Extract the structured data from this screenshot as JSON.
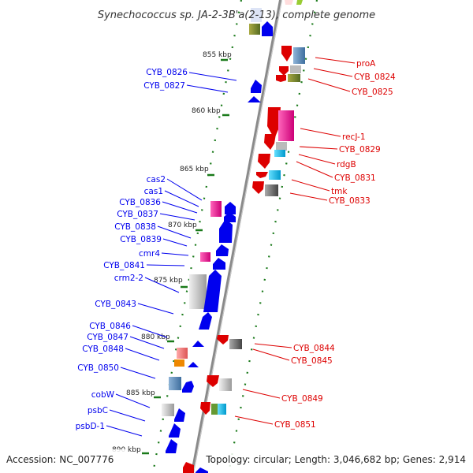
{
  "header": {
    "title": "Synechococcus sp. JA-2-3B'a(2-13), complete genome"
  },
  "footer": {
    "accession": "Accession: NC_007776",
    "summary": "Topology: circular; Length: 3,046,682 bp; Genes: 2,914"
  },
  "colors": {
    "backbone": "#8a8a8a",
    "forward_strand": "#0000ee",
    "reverse_strand": "#dd0000",
    "kbp_tick": "#1a7a1a"
  },
  "scale_marks": [
    {
      "label": "855 kbp"
    },
    {
      "label": "860 kbp"
    },
    {
      "label": "865 kbp"
    },
    {
      "label": "870 kbp"
    },
    {
      "label": "875 kbp"
    },
    {
      "label": "880 kbp"
    },
    {
      "label": "885 kbp"
    },
    {
      "label": "890 kbp"
    }
  ],
  "left_genes": [
    {
      "label": "CYB_0826"
    },
    {
      "label": "CYB_0827"
    },
    {
      "label": "cas2"
    },
    {
      "label": "cas1"
    },
    {
      "label": "CYB_0836"
    },
    {
      "label": "CYB_0837"
    },
    {
      "label": "CYB_0838"
    },
    {
      "label": "CYB_0839"
    },
    {
      "label": "cmr4"
    },
    {
      "label": "CYB_0841"
    },
    {
      "label": "crm2-2"
    },
    {
      "label": "CYB_0843"
    },
    {
      "label": "CYB_0846"
    },
    {
      "label": "CYB_0847"
    },
    {
      "label": "CYB_0848"
    },
    {
      "label": "CYB_0850"
    },
    {
      "label": "cobW"
    },
    {
      "label": "psbC"
    },
    {
      "label": "psbD-1"
    }
  ],
  "right_genes": [
    {
      "label": "proA"
    },
    {
      "label": "CYB_0824"
    },
    {
      "label": "CYB_0825"
    },
    {
      "label": "recJ-1"
    },
    {
      "label": "CYB_0829"
    },
    {
      "label": "rdgB"
    },
    {
      "label": "CYB_0831"
    },
    {
      "label": "tmk"
    },
    {
      "label": "CYB_0833"
    },
    {
      "label": "CYB_0844"
    },
    {
      "label": "CYB_0845"
    },
    {
      "label": "CYB_0849"
    },
    {
      "label": "CYB_0851"
    }
  ]
}
